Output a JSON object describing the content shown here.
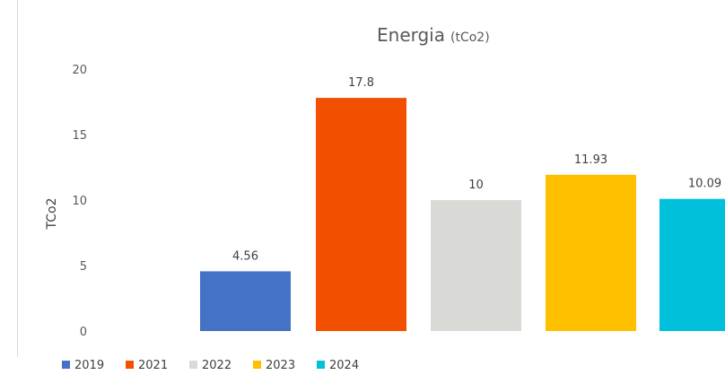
{
  "chart_data": {
    "type": "bar",
    "title": "Energia",
    "subtitle": "(tCo2)",
    "ylabel": "TCo2",
    "xlabel": "",
    "ylim": [
      0,
      20
    ],
    "yticks": [
      0,
      5,
      10,
      15,
      20
    ],
    "grid": false,
    "legend_position": "bottom-left",
    "series": [
      {
        "name": "2019",
        "value": 4.56,
        "label": "4.56",
        "color": "#4472c4"
      },
      {
        "name": "2021",
        "value": 17.8,
        "label": "17.8",
        "color": "#f25000"
      },
      {
        "name": "2022",
        "value": 10,
        "label": "10",
        "color": "#d9d9d6"
      },
      {
        "name": "2023",
        "value": 11.93,
        "label": "11.93",
        "color": "#ffc000"
      },
      {
        "name": "2024",
        "value": 10.09,
        "label": "10.09",
        "color": "#00c0dc"
      }
    ]
  }
}
